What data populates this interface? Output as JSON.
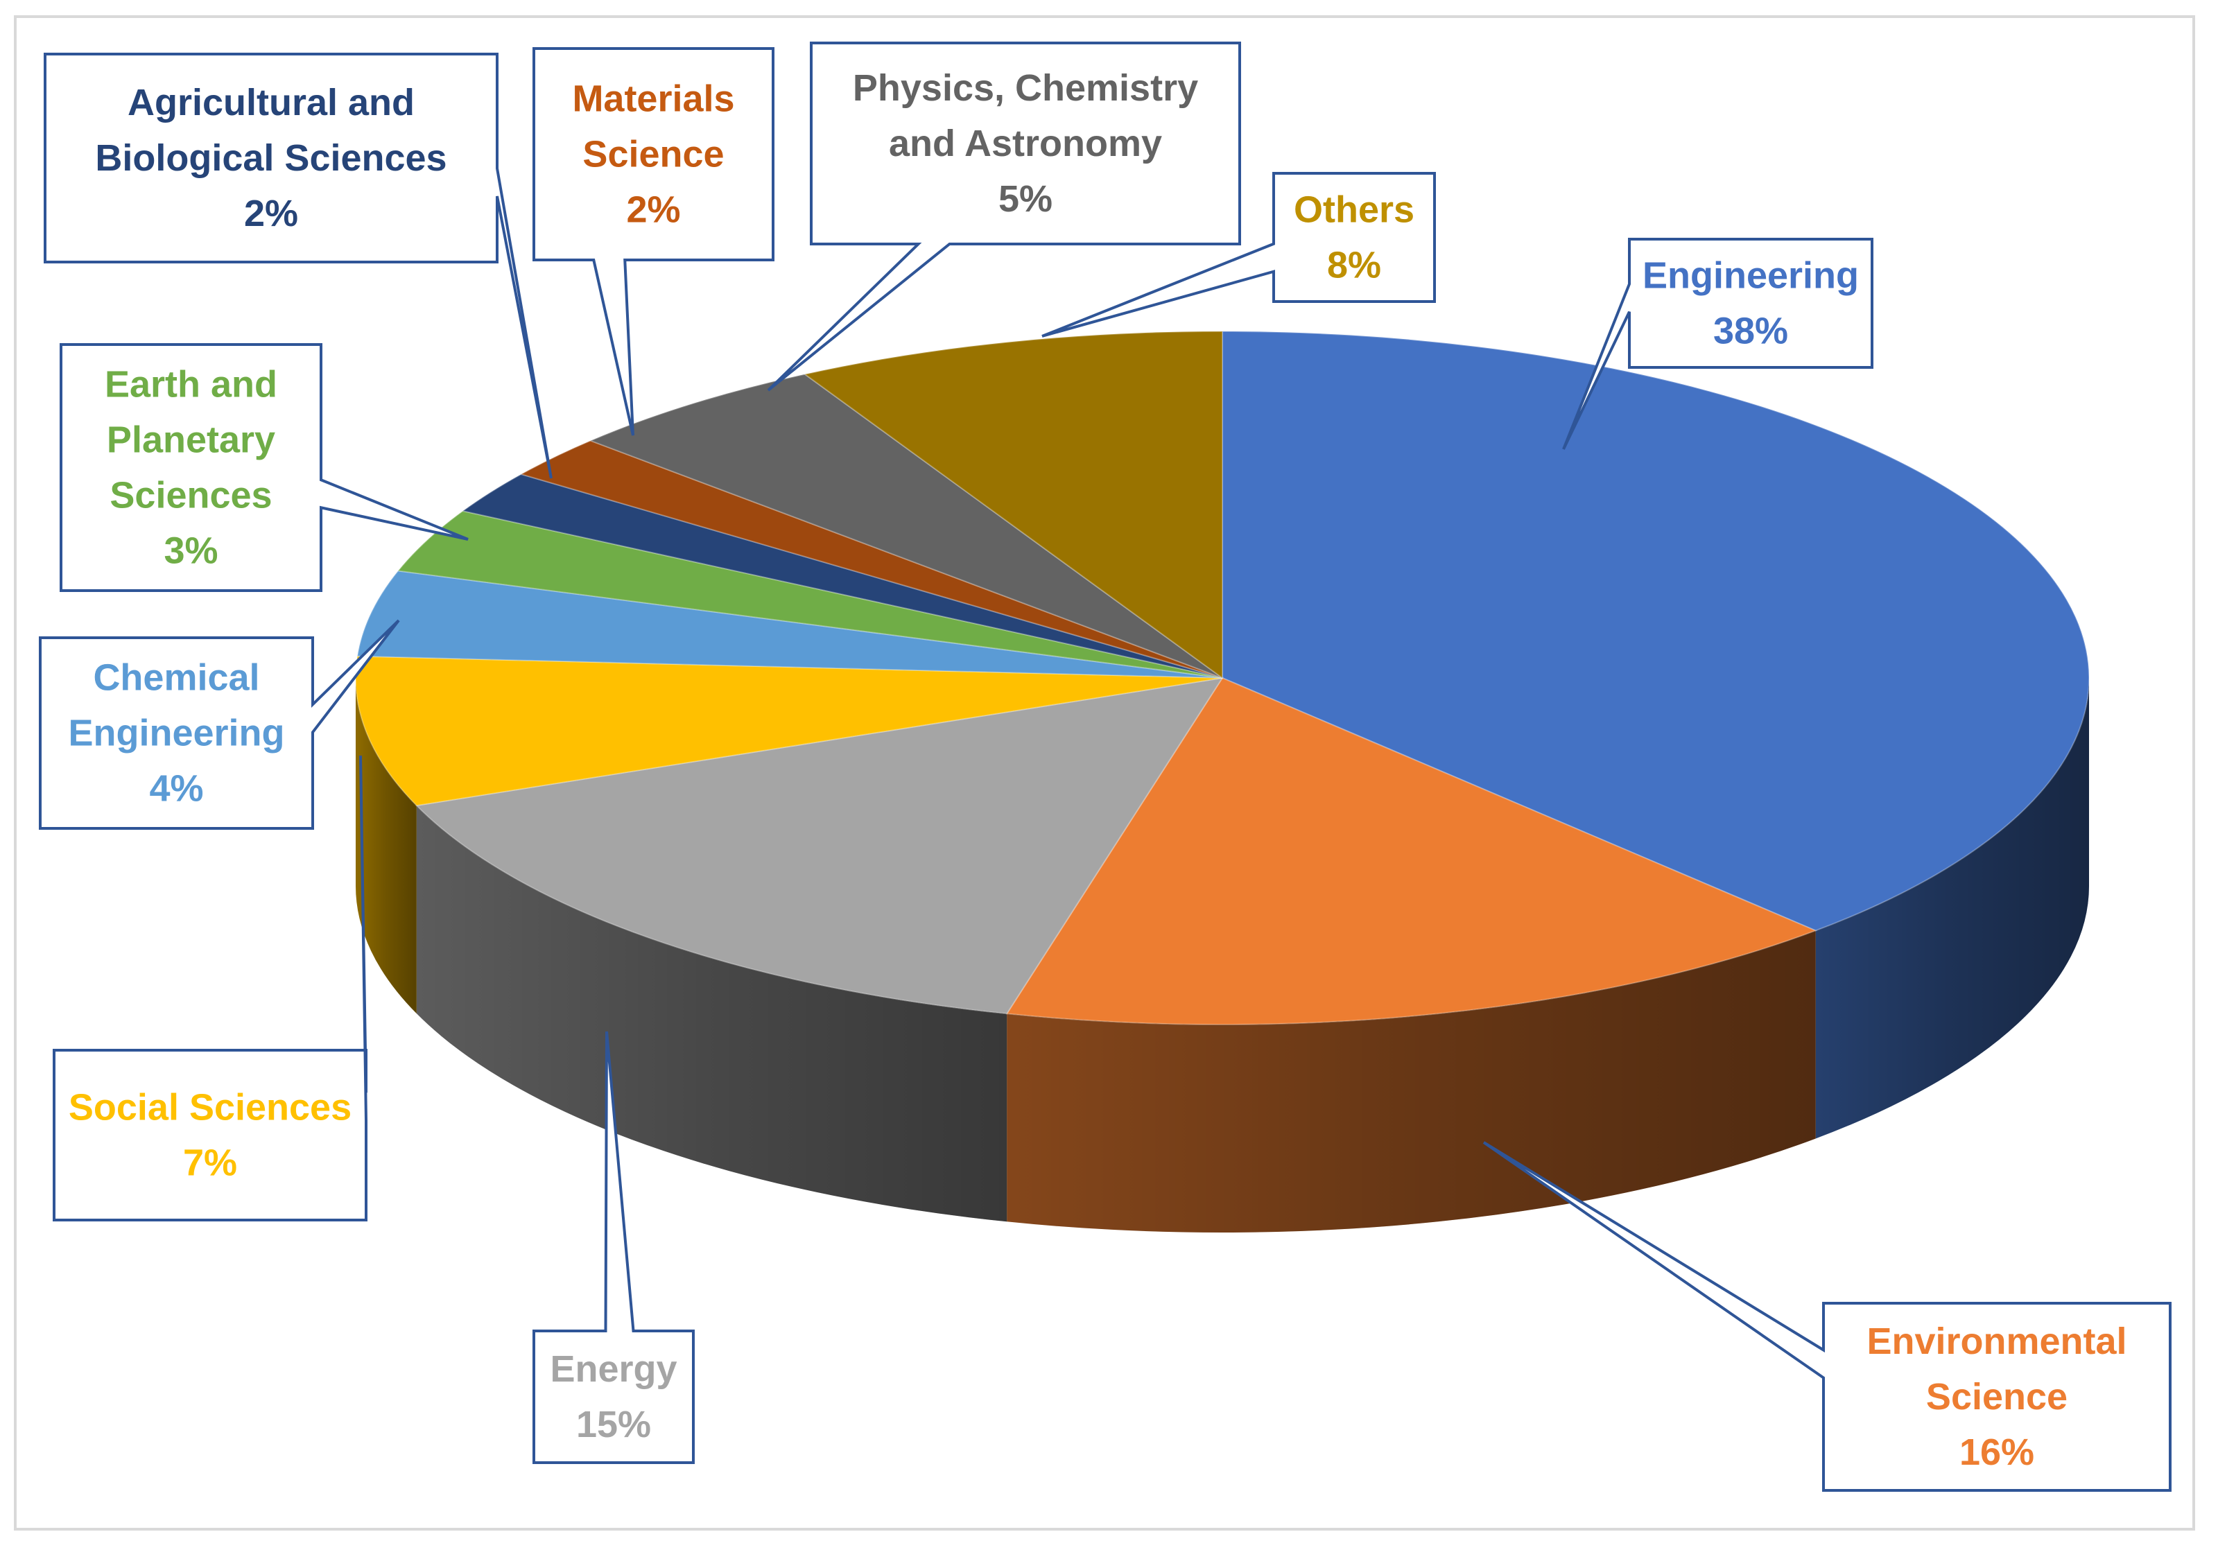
{
  "chart_data": {
    "type": "pie",
    "style": "3d-exploded-callouts",
    "slices": [
      {
        "label": "Engineering",
        "value": 38,
        "value_label": "38%",
        "color": "#4472C4"
      },
      {
        "label": "Environmental Science",
        "value": 16,
        "value_label": "16%",
        "color": "#ED7D31"
      },
      {
        "label": "Energy",
        "value": 15,
        "value_label": "15%",
        "color": "#A5A5A5"
      },
      {
        "label": "Social Sciences",
        "value": 7,
        "value_label": "7%",
        "color": "#FFC000"
      },
      {
        "label": "Chemical Engineering",
        "value": 4,
        "value_label": "4%",
        "color": "#5B9BD5"
      },
      {
        "label": "Earth and Planetary Sciences",
        "value": 3,
        "value_label": "3%",
        "color": "#70AD47"
      },
      {
        "label": "Agricultural and Biological Sciences",
        "value": 2,
        "value_label": "2%",
        "color": "#264478"
      },
      {
        "label": "Materials Science",
        "value": 2,
        "value_label": "2%",
        "color": "#9E480E"
      },
      {
        "label": "Physics, Chemistry and Astronomy",
        "value": 5,
        "value_label": "5%",
        "color": "#636363"
      },
      {
        "label": "Others",
        "value": 8,
        "value_label": "8%",
        "color": "#997300"
      }
    ],
    "callouts": [
      {
        "lines": [
          "Engineering",
          "38%"
        ],
        "text_color": "#4472C4"
      },
      {
        "lines": [
          "Environmental",
          "Science",
          "16%"
        ],
        "text_color": "#ED7D31"
      },
      {
        "lines": [
          "Energy",
          "15%"
        ],
        "text_color": "#A5A5A5"
      },
      {
        "lines": [
          "Social Sciences",
          "7%"
        ],
        "text_color": "#FFC000"
      },
      {
        "lines": [
          "Chemical",
          "Engineering",
          "4%"
        ],
        "text_color": "#5B9BD5"
      },
      {
        "lines": [
          "Earth and",
          "Planetary",
          "Sciences",
          "3%"
        ],
        "text_color": "#70AD47"
      },
      {
        "lines": [
          "Agricultural and",
          "Biological Sciences",
          "2%"
        ],
        "text_color": "#264478"
      },
      {
        "lines": [
          "Materials",
          "Science",
          "2%"
        ],
        "text_color": "#C55A11"
      },
      {
        "lines": [
          "Physics, Chemistry",
          "and Astronomy",
          "5%"
        ],
        "text_color": "#636363"
      },
      {
        "lines": [
          "Others",
          "8%"
        ],
        "text_color": "#BF9000"
      }
    ],
    "callout_border_color": "#2F5597",
    "legend": "none",
    "title": ""
  }
}
